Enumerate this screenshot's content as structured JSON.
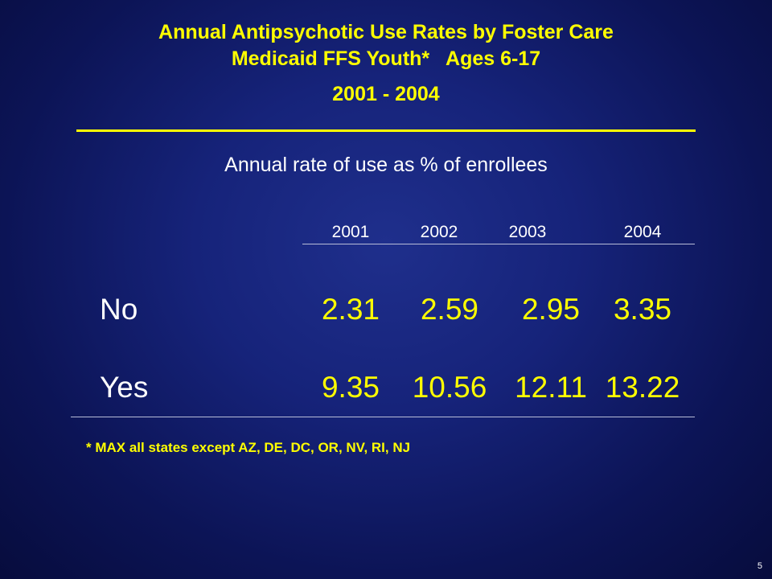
{
  "slide": {
    "title_line1": "Annual Antipsychotic Use Rates by Foster Care",
    "title_line2": "Medicaid FFS Youth*   Ages 6-17",
    "date_range": "2001 - 2004",
    "subtitle": "Annual rate of use as % of enrollees",
    "footnote": "* MAX all states except AZ, DE, DC, OR, NV, RI, NJ",
    "page_number": "5"
  },
  "table": {
    "years": [
      "2001",
      "2002",
      "2003",
      "2004"
    ],
    "rows": [
      {
        "label": "No",
        "values": [
          "2.31",
          "2.59",
          "2.95",
          "3.35"
        ]
      },
      {
        "label": "Yes",
        "values": [
          "9.35",
          "10.56",
          "12.11",
          "13.22"
        ]
      }
    ]
  },
  "colors": {
    "background": "#16237a",
    "accent": "#ffff00",
    "text": "#ffffff"
  }
}
